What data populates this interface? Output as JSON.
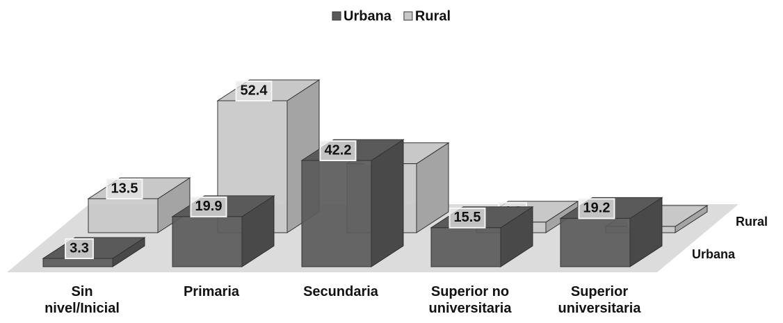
{
  "chart_data": {
    "type": "bar",
    "categories": [
      "Sin nivel/Inicial",
      "Primaria",
      "Secundaria",
      "Superior no universitaria",
      "Superior universitaria"
    ],
    "series": [
      {
        "name": "Urbana",
        "color": "#5a5a5a",
        "values": [
          3.3,
          19.9,
          42.2,
          15.5,
          19.2
        ]
      },
      {
        "name": "Rural",
        "color": "#c8c8c8",
        "values": [
          13.5,
          52.4,
          27.4,
          4.2,
          2.5
        ]
      }
    ],
    "legend": "top"
  }
}
